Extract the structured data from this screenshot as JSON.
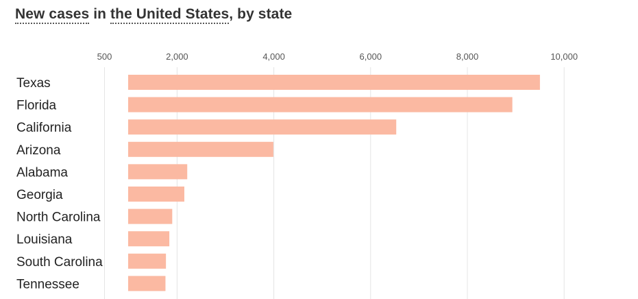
{
  "title": {
    "part1": "New cases",
    "part2": " in ",
    "part3": "the United States",
    "part4": ", by state"
  },
  "chart_data": {
    "type": "bar",
    "orientation": "horizontal",
    "title": "New cases in the United States, by state",
    "categories": [
      "Texas",
      "Florida",
      "California",
      "Arizona",
      "Alabama",
      "Georgia",
      "North Carolina",
      "Louisiana",
      "South Carolina",
      "Tennessee"
    ],
    "values": [
      9500,
      8930,
      6530,
      3990,
      2210,
      2150,
      1900,
      1840,
      1770,
      1760
    ],
    "xticks": [
      500,
      2000,
      4000,
      6000,
      8000,
      10000
    ],
    "xtick_labels": [
      "500",
      "2,000",
      "4,000",
      "6,000",
      "8,000",
      "10,000"
    ],
    "xlim": [
      0,
      10000
    ],
    "grid": true,
    "bar_color": "#fbb9a2",
    "grid_color": "#e4e4e4"
  }
}
